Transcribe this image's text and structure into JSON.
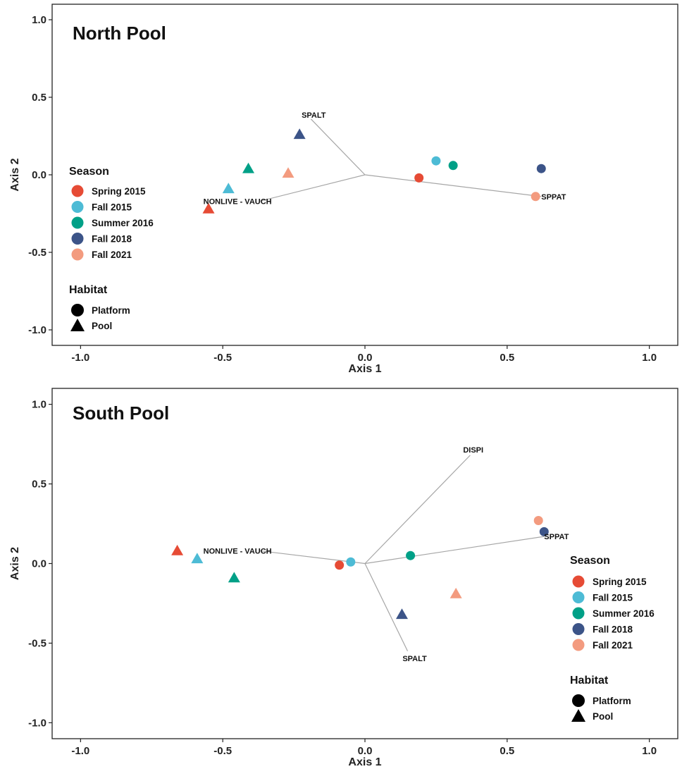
{
  "colors": {
    "Spring 2015": "#e64b35",
    "Fall 2015": "#4dbbd5",
    "Summer 2016": "#00a087",
    "Fall 2018": "#3c5488",
    "Fall 2021": "#f39b7f"
  },
  "chart_data": [
    {
      "type": "scatter",
      "title": "North Pool",
      "xlabel": "Axis 1",
      "ylabel": "Axis 2",
      "xlim": [
        -1.1,
        1.1
      ],
      "ylim": [
        -1.1,
        1.1
      ],
      "x_ticks": [
        "-1.0",
        "-0.5",
        "0.0",
        "0.5",
        "1.0"
      ],
      "y_ticks": [
        "1.0",
        "0.5",
        "0.0",
        "-0.5",
        "-1.0"
      ],
      "grid": false,
      "legend_position": "left",
      "legend": {
        "season_title": "Season",
        "seasons": [
          "Spring 2015",
          "Fall 2015",
          "Summer 2016",
          "Fall 2018",
          "Fall 2021"
        ],
        "habitat_title": "Habitat",
        "habitats": [
          "Platform",
          "Pool"
        ]
      },
      "vectors": [
        {
          "label": "SPALT",
          "x": -0.19,
          "y": 0.36
        },
        {
          "label": "NONLIVE - VAUCH",
          "x": -0.37,
          "y": -0.17
        },
        {
          "label": "SPPAT",
          "x": 0.62,
          "y": -0.14
        }
      ],
      "points": [
        {
          "season": "Spring 2015",
          "habitat": "Platform",
          "x": 0.19,
          "y": -0.02
        },
        {
          "season": "Fall 2015",
          "habitat": "Platform",
          "x": 0.25,
          "y": 0.09
        },
        {
          "season": "Summer 2016",
          "habitat": "Platform",
          "x": 0.31,
          "y": 0.06
        },
        {
          "season": "Fall 2018",
          "habitat": "Platform",
          "x": 0.62,
          "y": 0.04
        },
        {
          "season": "Fall 2021",
          "habitat": "Platform",
          "x": 0.6,
          "y": -0.14
        },
        {
          "season": "Spring 2015",
          "habitat": "Pool",
          "x": -0.55,
          "y": -0.22
        },
        {
          "season": "Fall 2015",
          "habitat": "Pool",
          "x": -0.48,
          "y": -0.09
        },
        {
          "season": "Summer 2016",
          "habitat": "Pool",
          "x": -0.41,
          "y": 0.04
        },
        {
          "season": "Fall 2018",
          "habitat": "Pool",
          "x": -0.23,
          "y": 0.26
        },
        {
          "season": "Fall 2021",
          "habitat": "Pool",
          "x": -0.27,
          "y": 0.01
        }
      ]
    },
    {
      "type": "scatter",
      "title": "South Pool",
      "xlabel": "Axis 1",
      "ylabel": "Axis 2",
      "xlim": [
        -1.1,
        1.1
      ],
      "ylim": [
        -1.1,
        1.1
      ],
      "x_ticks": [
        "-1.0",
        "-0.5",
        "0.0",
        "0.5",
        "1.0"
      ],
      "y_ticks": [
        "1.0",
        "0.5",
        "0.0",
        "-0.5",
        "-1.0"
      ],
      "grid": false,
      "legend_position": "right",
      "legend": {
        "season_title": "Season",
        "seasons": [
          "Spring 2015",
          "Fall 2015",
          "Summer 2016",
          "Fall 2018",
          "Fall 2021"
        ],
        "habitat_title": "Habitat",
        "habitats": [
          "Platform",
          "Pool"
        ]
      },
      "vectors": [
        {
          "label": "DISPI",
          "x": 0.37,
          "y": 0.68
        },
        {
          "label": "NONLIVE - VAUCH",
          "x": -0.37,
          "y": 0.08
        },
        {
          "label": "SPPAT",
          "x": 0.63,
          "y": 0.17
        },
        {
          "label": "SPALT",
          "x": 0.15,
          "y": -0.55
        }
      ],
      "points": [
        {
          "season": "Spring 2015",
          "habitat": "Platform",
          "x": -0.09,
          "y": -0.01
        },
        {
          "season": "Fall 2015",
          "habitat": "Platform",
          "x": -0.05,
          "y": 0.01
        },
        {
          "season": "Summer 2016",
          "habitat": "Platform",
          "x": 0.16,
          "y": 0.05
        },
        {
          "season": "Fall 2018",
          "habitat": "Platform",
          "x": 0.63,
          "y": 0.2
        },
        {
          "season": "Fall 2021",
          "habitat": "Platform",
          "x": 0.61,
          "y": 0.27
        },
        {
          "season": "Spring 2015",
          "habitat": "Pool",
          "x": -0.66,
          "y": 0.08
        },
        {
          "season": "Fall 2015",
          "habitat": "Pool",
          "x": -0.59,
          "y": 0.03
        },
        {
          "season": "Summer 2016",
          "habitat": "Pool",
          "x": -0.46,
          "y": -0.09
        },
        {
          "season": "Fall 2018",
          "habitat": "Pool",
          "x": 0.13,
          "y": -0.32
        },
        {
          "season": "Fall 2021",
          "habitat": "Pool",
          "x": 0.32,
          "y": -0.19
        }
      ]
    }
  ]
}
